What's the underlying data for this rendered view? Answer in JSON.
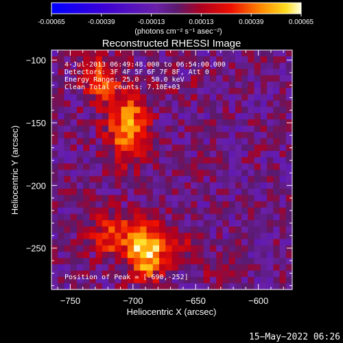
{
  "colorbar": {
    "ticks": [
      "-0.00065",
      "-0.00039",
      "-0.00013",
      "0.00013",
      "0.00039",
      "0.00065"
    ],
    "tick_values": [
      -0.00065,
      -0.00039,
      -0.00013,
      0.00013,
      0.00039,
      0.00065
    ],
    "unit_label": "(photons cm⁻² s⁻¹ asec⁻²)"
  },
  "chart_data": {
    "type": "heatmap",
    "title": "Reconstructed RHESSI Image",
    "xlabel": "Heliocentric X (arcsec)",
    "ylabel": "Heliocentric Y (arcsec)",
    "xlim": [
      -765,
      -573
    ],
    "ylim": [
      -283,
      -92
    ],
    "xticks": [
      -750,
      -700,
      -650,
      -600
    ],
    "yticks": [
      -100,
      -150,
      -200,
      -250
    ],
    "xtick_labels": [
      "−750",
      "−700",
      "−650",
      "−600"
    ],
    "ytick_labels": [
      "−100",
      "−150",
      "−200",
      "−250"
    ],
    "value_range": [
      -0.00065,
      0.00065
    ],
    "sources": [
      {
        "x": -704,
        "y": -153,
        "sx": 12,
        "sy": 20,
        "amp": 0.0005
      },
      {
        "x": -727,
        "y": -115,
        "sx": 10,
        "sy": 11,
        "amp": 0.00042
      },
      {
        "x": -690,
        "y": -252,
        "sx": 10,
        "sy": 16,
        "amp": 0.00064
      },
      {
        "x": -717,
        "y": -240,
        "sx": 12,
        "sy": 12,
        "amp": 0.00036
      },
      {
        "x": -667,
        "y": -247,
        "sx": 9,
        "sy": 8,
        "amp": 0.00026
      },
      {
        "x": -654,
        "y": -123,
        "sx": 6,
        "sy": 6,
        "amp": 0.00015
      },
      {
        "x": -632,
        "y": -268,
        "sx": 7,
        "sy": 5,
        "amp": 0.00018
      }
    ],
    "annotations": [
      "4-Jul-2013 06:49:48.000 to 06:54:00.000",
      "Detectors: 3F 4F 5F 6F 7F 8F, Att 0",
      "Energy Range: 25.0 - 50.0 keV",
      "Clean     Total counts: 7.10E+03",
      "Position of Peak = [-690,-252]"
    ]
  },
  "footer": {
    "timestamp": "15−May−2022 06:26"
  }
}
